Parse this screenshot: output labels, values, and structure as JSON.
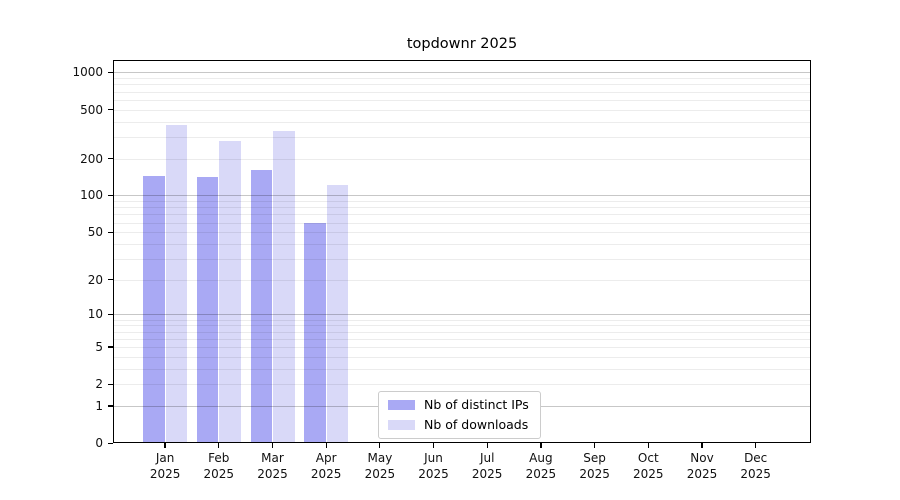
{
  "chart_data": {
    "type": "bar",
    "title": "topdownr 2025",
    "categories": [
      "Jan",
      "Feb",
      "Mar",
      "Apr",
      "May",
      "Jun",
      "Jul",
      "Aug",
      "Sep",
      "Oct",
      "Nov",
      "Dec"
    ],
    "x_sublabel": "2025",
    "series": [
      {
        "name": "Nb of distinct IPs",
        "color": "#a9a9f4",
        "values": [
          143,
          141,
          162,
          60,
          null,
          null,
          null,
          null,
          null,
          null,
          null,
          null
        ]
      },
      {
        "name": "Nb of downloads",
        "color": "#d9d9f8",
        "values": [
          377,
          279,
          338,
          121,
          null,
          null,
          null,
          null,
          null,
          null,
          null,
          null
        ]
      }
    ],
    "yscale": "log1p",
    "yticks": [
      0,
      1,
      2,
      5,
      10,
      20,
      50,
      100,
      200,
      500,
      1000
    ],
    "major_gridlines": [
      1,
      10,
      100,
      1000
    ],
    "ylim": [
      0,
      1260
    ],
    "grid": "on",
    "legend_position": "lower-left-of-center",
    "colors": {
      "ips_bar": "#a9a9f4",
      "downloads_bar": "#d9d9f8",
      "grid_major": "#c6c6c6",
      "grid_minor": "#ececec",
      "frame": "#000000"
    }
  }
}
